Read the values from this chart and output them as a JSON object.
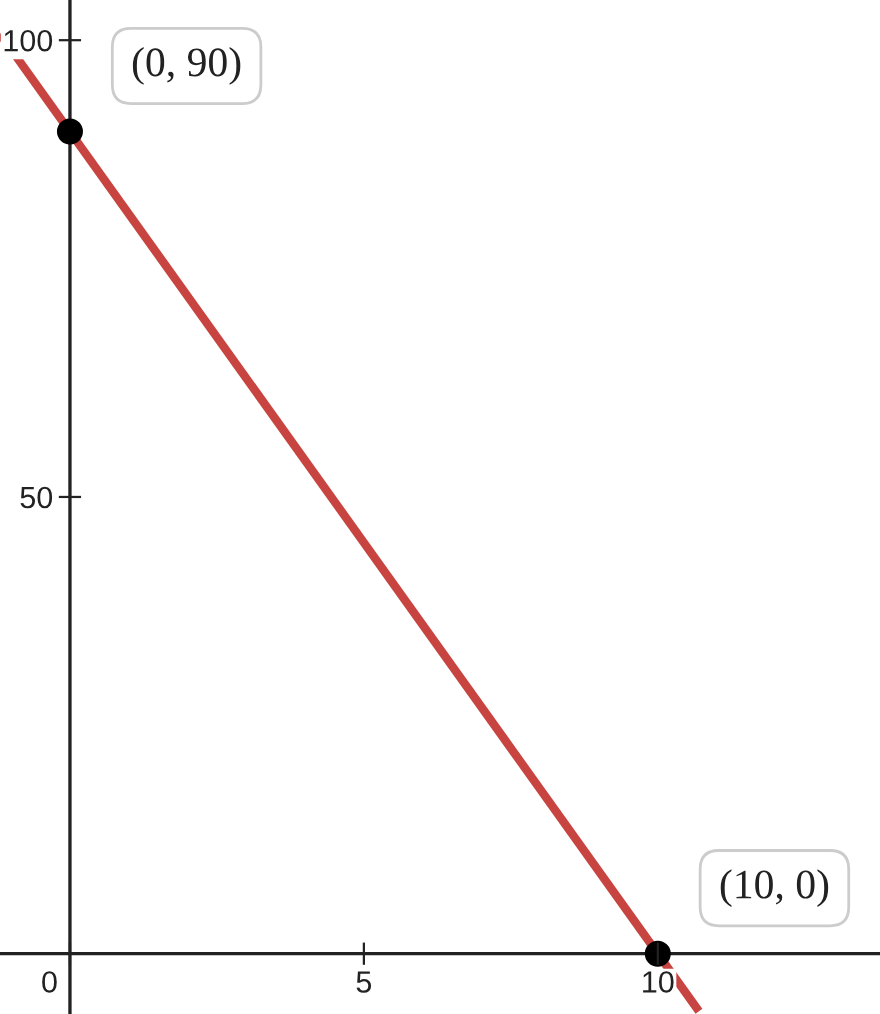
{
  "chart_data": {
    "type": "line",
    "series": [
      {
        "color": "#c74440",
        "x": [
          -1.19,
          10.7
        ],
        "values": [
          100.7,
          -6.3
        ]
      },
      {
        "type": "scatter",
        "color": "#000000",
        "x": [
          0,
          10
        ],
        "values": [
          90,
          0
        ]
      }
    ],
    "xlim": [
      -1.19,
      13.78
    ],
    "ylim": [
      -6.6,
      104.4
    ],
    "xticks": [
      0,
      5,
      10
    ],
    "yticks": [
      50,
      100
    ],
    "annotations": [
      {
        "text": "(0, 90)",
        "x": 0,
        "y": 90
      },
      {
        "text": "(10, 0)",
        "x": 10,
        "y": 0
      }
    ]
  }
}
